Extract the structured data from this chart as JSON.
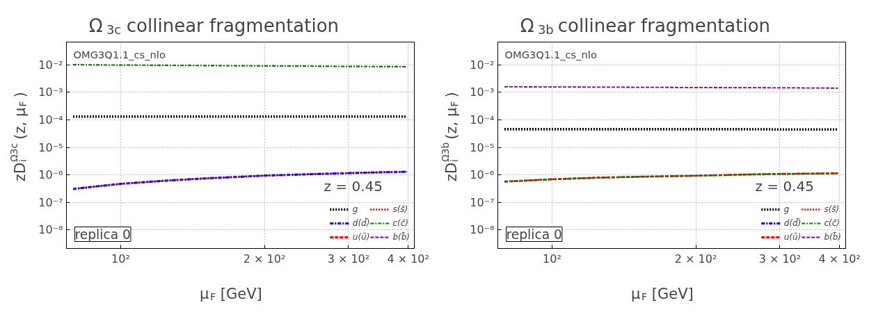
{
  "chart_data": [
    {
      "type": "line",
      "title": "Ω$_{3c}$ collinear fragmentation",
      "xlabel": "μ$_{F}$ [GeV]",
      "ylabel": "zD$_{i}$$^{Ω3c}$(z, μ$_{F}$)",
      "annotations": [
        "OMG3Q1.1_cs_nlo",
        "z = 0.45",
        "replica 0"
      ],
      "log": "xy",
      "grid": true,
      "legend": "bottom right",
      "xlim": [
        77,
        412
      ],
      "ylim": [
        2.1e-09,
        0.068
      ],
      "xticks": [
        {
          "value": 100,
          "label": "10²"
        },
        {
          "value": 200,
          "label": "2 × 10²"
        },
        {
          "value": 300,
          "label": "3 × 10²"
        },
        {
          "value": 400,
          "label": "4 × 10²"
        }
      ],
      "yticks": [
        {
          "value": 1e-08,
          "label": "10⁻⁸"
        },
        {
          "value": 1e-07,
          "label": "10⁻⁷"
        },
        {
          "value": 1e-06,
          "label": "10⁻⁶"
        },
        {
          "value": 1e-05,
          "label": "10⁻⁵"
        },
        {
          "value": 0.0001,
          "label": "10⁻⁴"
        },
        {
          "value": 0.001,
          "label": "10⁻³"
        },
        {
          "value": 0.01,
          "label": "10⁻²"
        }
      ],
      "x": [
        79.5,
        90,
        100,
        125,
        150,
        200,
        250,
        300,
        350,
        397
      ],
      "series": [
        {
          "name": "g",
          "color": "#000000",
          "line_style": "dotted",
          "values": [
            0.000132,
            0.000132,
            0.000132,
            0.000132,
            0.000132,
            0.000132,
            0.000132,
            0.000132,
            0.000132,
            0.000132
          ]
        },
        {
          "name": "d(d̄)",
          "color": "#0000ff",
          "line_style": "dashdot",
          "values": [
            3.05e-07,
            3.9e-07,
            4.7e-07,
            6.2e-07,
            7.4e-07,
            9.4e-07,
            1.06e-06,
            1.16e-06,
            1.24e-06,
            1.3e-06
          ]
        },
        {
          "name": "u(ū)",
          "color": "#ff0000",
          "line_style": "dashed",
          "values": [
            null,
            null,
            null,
            null,
            null,
            null,
            null,
            null,
            null,
            null
          ]
        },
        {
          "name": "s(s̄)",
          "color": "#c00000",
          "line_style": "dotted",
          "values": [
            null,
            null,
            null,
            null,
            null,
            null,
            null,
            null,
            null,
            null
          ]
        },
        {
          "name": "c(c̄)",
          "color": "#008000",
          "line_style": "dashdot",
          "values": [
            0.0102,
            0.01,
            0.0099,
            0.0097,
            0.0095,
            0.0092,
            0.009,
            0.0088,
            0.0087,
            0.0086
          ]
        },
        {
          "name": "b(b̄)",
          "color": "#800080",
          "line_style": "dashed",
          "values": [
            3.05e-07,
            3.9e-07,
            4.7e-07,
            6.2e-07,
            7.4e-07,
            9.4e-07,
            1.06e-06,
            1.16e-06,
            1.24e-06,
            1.3e-06
          ]
        }
      ]
    },
    {
      "type": "line",
      "title": "Ω$_{3b}$ collinear fragmentation",
      "xlabel": "μ$_{F}$ [GeV]",
      "ylabel": "zD$_{i}$$^{Ω3b}$(z, μ$_{F}$)",
      "annotations": [
        "OMG3Q1.1_cs_nlo",
        "z = 0.45",
        "replica 0"
      ],
      "log": "xy",
      "grid": true,
      "legend": "bottom right",
      "xlim": [
        77,
        412
      ],
      "ylim": [
        2.1e-09,
        0.068
      ],
      "xticks": [
        {
          "value": 100,
          "label": "10²"
        },
        {
          "value": 200,
          "label": "2 × 10²"
        },
        {
          "value": 300,
          "label": "3 × 10²"
        },
        {
          "value": 400,
          "label": "4 × 10²"
        }
      ],
      "yticks": [
        {
          "value": 1e-08,
          "label": "10⁻⁸"
        },
        {
          "value": 1e-07,
          "label": "10⁻⁷"
        },
        {
          "value": 1e-06,
          "label": "10⁻⁶"
        },
        {
          "value": 1e-05,
          "label": "10⁻⁵"
        },
        {
          "value": 0.0001,
          "label": "10⁻⁴"
        },
        {
          "value": 0.001,
          "label": "10⁻³"
        },
        {
          "value": 0.01,
          "label": "10⁻²"
        }
      ],
      "x": [
        79.5,
        90,
        100,
        125,
        150,
        200,
        250,
        300,
        350,
        397
      ],
      "series": [
        {
          "name": "g",
          "color": "#000000",
          "line_style": "dotted",
          "values": [
            4.6e-05,
            4.6e-05,
            4.6e-05,
            4.6e-05,
            4.6e-05,
            4.6e-05,
            4.6e-05,
            4.5e-05,
            4.5e-05,
            4.5e-05
          ]
        },
        {
          "name": "d(d̄)",
          "color": "#0000ff",
          "line_style": "dashdot",
          "values": [
            null,
            null,
            null,
            null,
            null,
            null,
            null,
            null,
            null,
            null
          ]
        },
        {
          "name": "u(ū)",
          "color": "#ff0000",
          "line_style": "dashed",
          "values": [
            5.7e-07,
            6.3e-07,
            6.9e-07,
            7.9e-07,
            8.5e-07,
            9.3e-07,
            1.02e-06,
            1.08e-06,
            1.11e-06,
            1.14e-06
          ]
        },
        {
          "name": "s(s̄)",
          "color": "#c00000",
          "line_style": "dotted",
          "values": [
            null,
            null,
            null,
            null,
            null,
            null,
            null,
            null,
            null,
            null
          ]
        },
        {
          "name": "c(c̄)",
          "color": "#008000",
          "line_style": "dashdot",
          "values": [
            5.7e-07,
            6.3e-07,
            6.9e-07,
            7.9e-07,
            8.5e-07,
            9.3e-07,
            1.02e-06,
            1.08e-06,
            1.11e-06,
            1.14e-06
          ]
        },
        {
          "name": "b(b̄)",
          "color": "#800080",
          "line_style": "dashed",
          "values": [
            0.0016,
            0.00159,
            0.00158,
            0.00156,
            0.00154,
            0.00151,
            0.00149,
            0.00147,
            0.00145,
            0.00143
          ]
        }
      ]
    }
  ]
}
